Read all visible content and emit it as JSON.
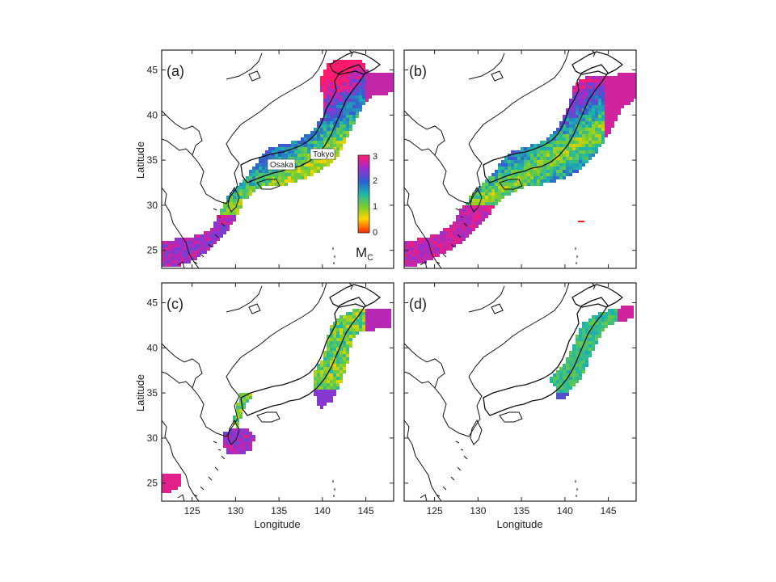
{
  "panels": [
    {
      "id": "a",
      "label": "(a)"
    },
    {
      "id": "b",
      "label": "(b)"
    },
    {
      "id": "c",
      "label": "(c)"
    },
    {
      "id": "d",
      "label": "(d)"
    }
  ],
  "axes": {
    "xlabel": "Longitude",
    "ylabel": "Latitude",
    "xlim": [
      121.5,
      148.2
    ],
    "ylim": [
      23,
      47.2
    ],
    "xticks": [
      "125",
      "130",
      "135",
      "140",
      "145"
    ],
    "yticks": [
      "25",
      "30",
      "35",
      "40",
      "45"
    ]
  },
  "cities": {
    "tokyo": "Tokyo",
    "osaka": "Osaka"
  },
  "colorbar": {
    "title_main": "M",
    "title_sub": "C",
    "ticks": [
      "0",
      "1",
      "2",
      "3"
    ],
    "colors": [
      "#ff2a00",
      "#ffd400",
      "#7ccf2c",
      "#1fb6a8",
      "#2f5fd0",
      "#9b2fd0",
      "#ff1a6e"
    ]
  }
}
